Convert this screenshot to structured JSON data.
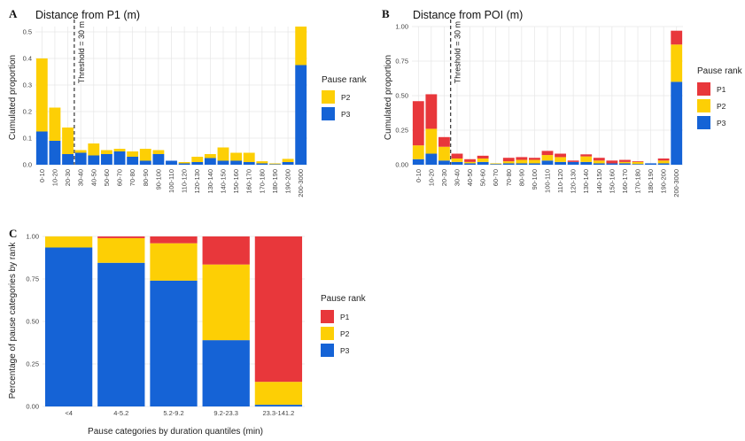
{
  "colors": {
    "P1": "#e8373b",
    "P2": "#fdcf05",
    "P3": "#1563d6"
  },
  "legend_title": "Pause rank",
  "chart_data": [
    {
      "panel": "A",
      "type": "bar",
      "stacked": true,
      "title": "Distance from P1 (m)",
      "xlabel": "",
      "ylabel": "Cumulated proportion",
      "ylim": [
        0,
        0.52
      ],
      "yticks": [
        "0.0",
        "0.1",
        "0.2",
        "0.3",
        "0.4",
        "0.5"
      ],
      "ytick_values": [
        0,
        0.1,
        0.2,
        0.3,
        0.4,
        0.5
      ],
      "categories": [
        "0-10",
        "10-20",
        "20-30",
        "30-40",
        "40-50",
        "50-60",
        "60-70",
        "70-80",
        "80-90",
        "90-100",
        "100-110",
        "110-120",
        "120-130",
        "130-140",
        "140-150",
        "150-160",
        "160-170",
        "170-180",
        "180-190",
        "190-200",
        "200-3000"
      ],
      "series": [
        {
          "name": "P3",
          "values": [
            0.125,
            0.09,
            0.04,
            0.045,
            0.035,
            0.04,
            0.05,
            0.03,
            0.015,
            0.04,
            0.015,
            0.005,
            0.01,
            0.025,
            0.015,
            0.015,
            0.01,
            0.005,
            0.002,
            0.01,
            0.375
          ]
        },
        {
          "name": "P2",
          "values": [
            0.275,
            0.125,
            0.1,
            0.01,
            0.045,
            0.015,
            0.01,
            0.02,
            0.045,
            0.015,
            0.0,
            0.005,
            0.02,
            0.015,
            0.05,
            0.03,
            0.035,
            0.008,
            0.003,
            0.012,
            0.145
          ]
        }
      ],
      "legend": [
        "P2",
        "P3"
      ],
      "threshold_label": "Threshold = 30 m",
      "threshold_position": "20-30"
    },
    {
      "panel": "B",
      "type": "bar",
      "stacked": true,
      "title": "Distance from POI (m)",
      "xlabel": "",
      "ylabel": "Cumulated proportion",
      "ylim": [
        0,
        1.0
      ],
      "yticks": [
        "0.00",
        "0.25",
        "0.50",
        "0.75",
        "1.00"
      ],
      "ytick_values": [
        0,
        0.25,
        0.5,
        0.75,
        1.0
      ],
      "categories": [
        "0-10",
        "10-20",
        "20-30",
        "30-40",
        "40-50",
        "50-60",
        "60-70",
        "70-80",
        "80-90",
        "90-100",
        "100-110",
        "110-120",
        "120-130",
        "130-140",
        "140-150",
        "150-160",
        "160-170",
        "170-180",
        "180-190",
        "190-200",
        "200-3000"
      ],
      "series": [
        {
          "name": "P3",
          "values": [
            0.04,
            0.08,
            0.03,
            0.02,
            0.01,
            0.02,
            0.005,
            0.01,
            0.01,
            0.01,
            0.03,
            0.02,
            0.02,
            0.02,
            0.01,
            0.01,
            0.01,
            0.005,
            0.01,
            0.01,
            0.6
          ]
        },
        {
          "name": "P2",
          "values": [
            0.1,
            0.18,
            0.1,
            0.025,
            0.01,
            0.025,
            0.005,
            0.015,
            0.025,
            0.025,
            0.04,
            0.035,
            0.0,
            0.04,
            0.02,
            0.0,
            0.01,
            0.015,
            0.0,
            0.02,
            0.27
          ]
        },
        {
          "name": "P1",
          "values": [
            0.32,
            0.25,
            0.07,
            0.035,
            0.02,
            0.02,
            0.0,
            0.025,
            0.02,
            0.015,
            0.03,
            0.025,
            0.01,
            0.015,
            0.02,
            0.02,
            0.015,
            0.005,
            0.0,
            0.015,
            0.1
          ]
        }
      ],
      "legend": [
        "P1",
        "P2",
        "P3"
      ],
      "threshold_label": "Threshold = 30 m",
      "threshold_position": "20-30"
    },
    {
      "panel": "C",
      "type": "bar",
      "stacked": true,
      "title": "",
      "xlabel": "Pause categories by duration quantiles (min)",
      "ylabel": "Percentage of pause categories by rank",
      "ylim": [
        0,
        1.0
      ],
      "yticks": [
        "0.00",
        "0.25",
        "0.50",
        "0.75",
        "1.00"
      ],
      "ytick_values": [
        0,
        0.25,
        0.5,
        0.75,
        1.0
      ],
      "categories": [
        "<4",
        "4-5.2",
        "5.2-9.2",
        "9.2-23.3",
        "23.3-141.2"
      ],
      "series": [
        {
          "name": "P3",
          "values": [
            0.935,
            0.845,
            0.74,
            0.39,
            0.01
          ]
        },
        {
          "name": "P2",
          "values": [
            0.065,
            0.145,
            0.22,
            0.445,
            0.135
          ]
        },
        {
          "name": "P1",
          "values": [
            0.0,
            0.01,
            0.04,
            0.165,
            0.855
          ]
        }
      ],
      "legend": [
        "P1",
        "P2",
        "P3"
      ]
    }
  ]
}
